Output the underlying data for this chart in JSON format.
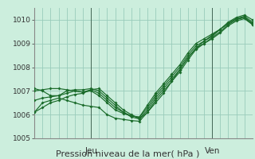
{
  "title": "",
  "xlabel": "Pression niveau de la mer( hPa )",
  "ylim": [
    1005,
    1010.5
  ],
  "xlim": [
    0,
    27
  ],
  "yticks": [
    1005,
    1006,
    1007,
    1008,
    1009,
    1010
  ],
  "bg_color": "#cceedd",
  "grid_color": "#99ccbb",
  "line_color": "#1a6b2a",
  "jeu_x": 7,
  "ven_x": 22,
  "series": [
    [
      1006.1,
      1006.5,
      1006.6,
      1006.7,
      1006.6,
      1006.5,
      1006.4,
      1006.35,
      1006.3,
      1006.0,
      1005.85,
      1005.8,
      1005.75,
      1005.72,
      1006.1,
      1006.5,
      1006.9,
      1007.4,
      1007.9,
      1008.4,
      1008.8,
      1009.1,
      1009.3,
      1009.6,
      1009.85,
      1010.05,
      1010.1,
      1009.8
    ],
    [
      1007.1,
      1007.0,
      1006.8,
      1006.8,
      1006.9,
      1007.0,
      1006.95,
      1007.0,
      1006.8,
      1006.5,
      1006.2,
      1006.05,
      1005.95,
      1005.9,
      1006.4,
      1006.9,
      1007.3,
      1007.7,
      1008.1,
      1008.6,
      1009.0,
      1009.2,
      1009.4,
      1009.6,
      1009.9,
      1010.1,
      1010.2,
      1010.0
    ],
    [
      1007.0,
      1007.05,
      1007.1,
      1007.1,
      1007.05,
      1007.0,
      1006.95,
      1007.05,
      1006.9,
      1006.6,
      1006.3,
      1006.1,
      1005.95,
      1005.88,
      1006.3,
      1006.8,
      1007.2,
      1007.6,
      1008.0,
      1008.5,
      1008.9,
      1009.1,
      1009.35,
      1009.6,
      1009.85,
      1010.05,
      1010.15,
      1009.9
    ],
    [
      1006.6,
      1006.7,
      1006.75,
      1006.8,
      1007.0,
      1007.05,
      1007.05,
      1007.1,
      1007.0,
      1006.7,
      1006.4,
      1006.1,
      1005.9,
      1005.82,
      1006.2,
      1006.7,
      1007.1,
      1007.5,
      1007.9,
      1008.4,
      1008.8,
      1009.0,
      1009.25,
      1009.5,
      1009.8,
      1010.0,
      1010.1,
      1009.85
    ],
    [
      1006.1,
      1006.3,
      1006.5,
      1006.6,
      1006.75,
      1006.85,
      1006.9,
      1007.05,
      1007.1,
      1006.8,
      1006.5,
      1006.2,
      1006.0,
      1005.82,
      1006.1,
      1006.6,
      1007.0,
      1007.4,
      1007.8,
      1008.3,
      1008.75,
      1009.0,
      1009.2,
      1009.45,
      1009.75,
      1009.95,
      1010.05,
      1009.8
    ]
  ]
}
